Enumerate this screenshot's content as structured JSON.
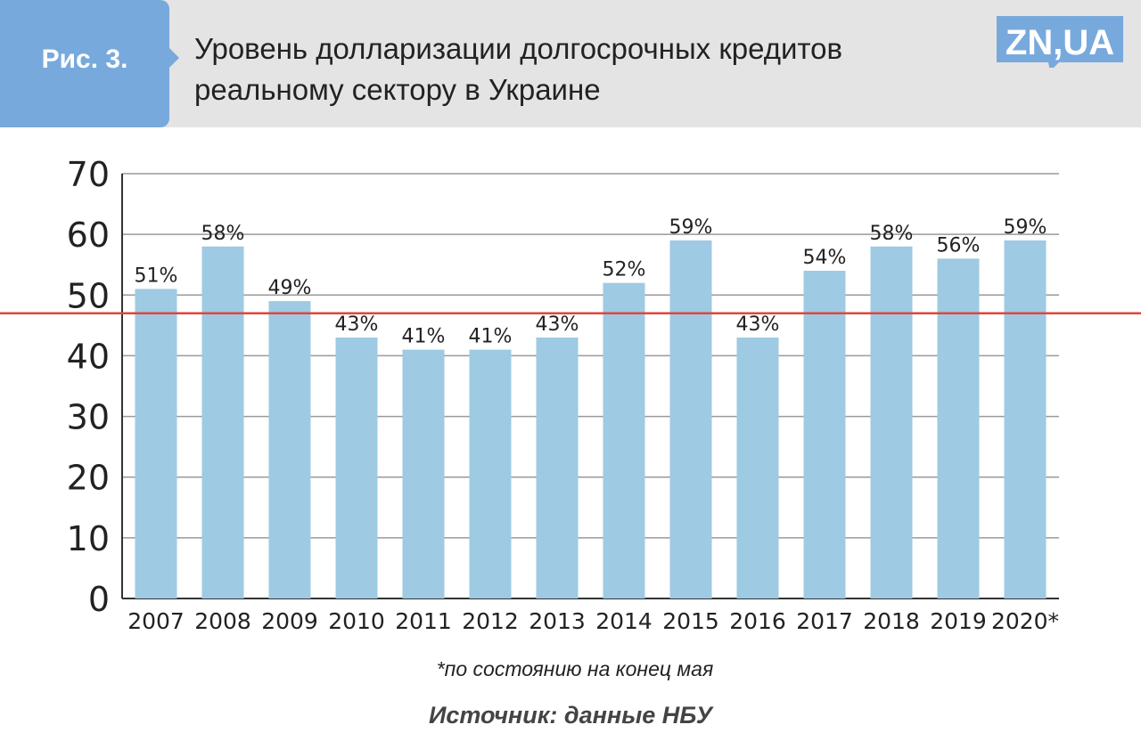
{
  "header": {
    "figure_label": "Рис. 3.",
    "title_line1": "Уровень долларизации долгосрочных кредитов",
    "title_line2": "реальному сектору в Украине",
    "logo_text": "ZN,UA",
    "logo_color": "#78a9dc",
    "tab_color": "#78a9dc",
    "band_color": "#e4e4e4"
  },
  "chart_data": {
    "type": "bar",
    "categories": [
      "2007",
      "2008",
      "2009",
      "2010",
      "2011",
      "2012",
      "2013",
      "2014",
      "2015",
      "2016",
      "2017",
      "2018",
      "2019",
      "2020*"
    ],
    "values": [
      51,
      58,
      49,
      43,
      41,
      41,
      43,
      52,
      59,
      43,
      54,
      58,
      56,
      59
    ],
    "data_labels": [
      "51%",
      "58%",
      "49%",
      "43%",
      "41%",
      "41%",
      "43%",
      "52%",
      "59%",
      "43%",
      "54%",
      "58%",
      "56%",
      "59%"
    ],
    "ylim": [
      0,
      70
    ],
    "yticks": [
      0,
      10,
      20,
      30,
      40,
      50,
      60,
      70
    ],
    "grid": true,
    "bar_color": "#9ecae3",
    "reference_line": {
      "value": 47,
      "color": "#e0463c"
    }
  },
  "footer": {
    "footnote": "*по состоянию на конец мая",
    "source": "Источник: данные НБУ"
  }
}
